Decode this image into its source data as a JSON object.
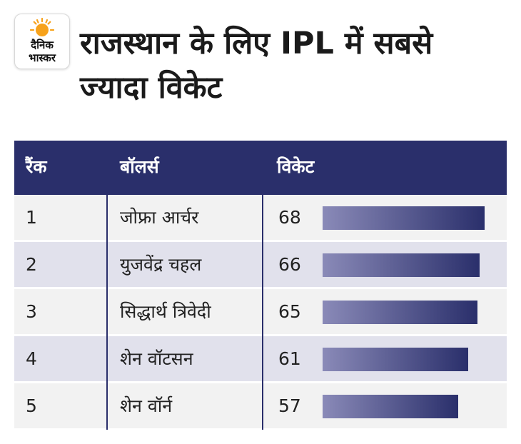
{
  "logo": {
    "line1": "दैनिक",
    "line2": "भास्कर"
  },
  "title": "राजस्थान के लिए IPL में सबसे ज्यादा विकेट",
  "chart_data": {
    "type": "bar",
    "orientation": "horizontal",
    "columns": [
      "रैंक",
      "बॉलर्स",
      "विकेट"
    ],
    "ranks": [
      "1",
      "2",
      "3",
      "4",
      "5"
    ],
    "categories": [
      "जोफ्रा आर्चर",
      "युजवेंद्र चहल",
      "सिद्धार्थ त्रिवेदी",
      "शेन वॉटसन",
      "शेन वॉर्न"
    ],
    "values": [
      68,
      66,
      65,
      61,
      57
    ],
    "xlim": [
      0,
      68
    ],
    "grid": false,
    "bar_gradient": [
      "#8a8ab8",
      "#2a2f6b"
    ],
    "header_color": "#2a2f6b"
  }
}
